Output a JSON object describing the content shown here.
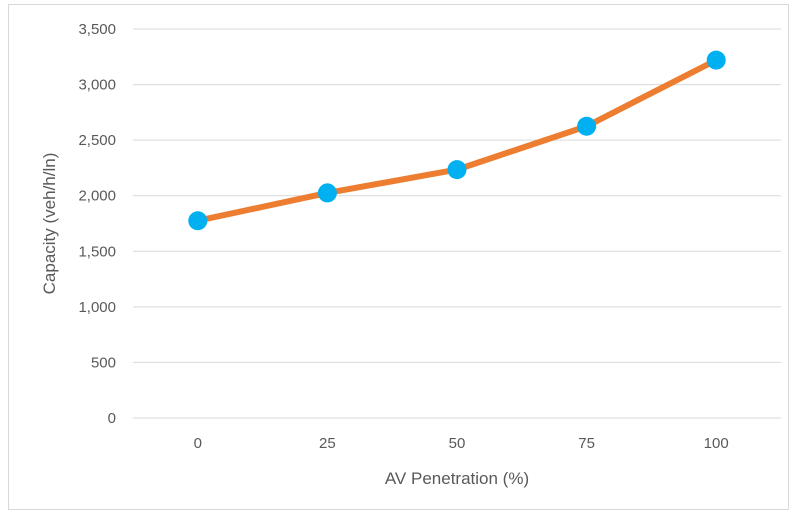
{
  "chart_data": {
    "type": "line",
    "xlabel": "AV Penetration (%)",
    "ylabel": "Capacity (veh/h/ln)",
    "categories": [
      "0",
      "25",
      "50",
      "75",
      "100"
    ],
    "series": [
      {
        "values": [
          1775,
          2025,
          2235,
          2625,
          3220
        ],
        "line_color": "#ED7D31",
        "marker_color": "#00B0F0"
      }
    ],
    "ylim": [
      0,
      3500
    ],
    "y_ticks": [
      "0",
      "500",
      "1,000",
      "1,500",
      "2,000",
      "2,500",
      "3,000",
      "3,500"
    ],
    "grid": true,
    "legend": "none",
    "gridline_color": "#d9d9d9"
  }
}
